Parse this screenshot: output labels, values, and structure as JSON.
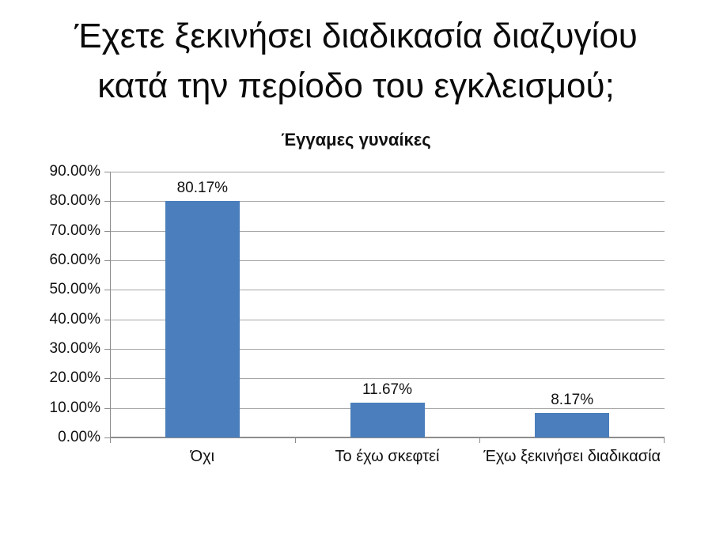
{
  "slide": {
    "title_line1": "Έχετε ξεκινήσει διαδικασία διαζυγίου",
    "title_line2": "κατά την περίοδο του εγκλεισμού;"
  },
  "chart_data": {
    "type": "bar",
    "title": "Έγγαμες γυναίκες",
    "categories": [
      "Όχι",
      "Το έχω σκεφτεί",
      "Έχω ξεκινήσει διαδικασία"
    ],
    "values": [
      80.17,
      11.67,
      8.17
    ],
    "data_labels": [
      "80.17%",
      "11.67%",
      "8.17%"
    ],
    "y_ticks": [
      "0.00%",
      "10.00%",
      "20.00%",
      "30.00%",
      "40.00%",
      "50.00%",
      "60.00%",
      "70.00%",
      "80.00%",
      "90.00%"
    ],
    "xlabel": "",
    "ylabel": "",
    "ylim": [
      0,
      90
    ],
    "grid": true,
    "legend": "none",
    "colors": {
      "bar": "#4a7ebc",
      "gridline": "#a6a6a6",
      "axis": "#8c8c8c",
      "text": "#111111"
    }
  }
}
